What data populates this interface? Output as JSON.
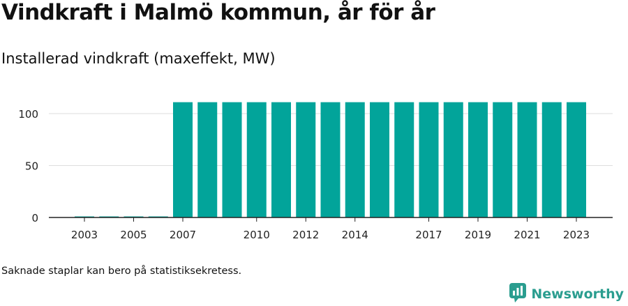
{
  "title": "Vindkraft i Malmö kommun, år för år",
  "subtitle": "Installerad vindkraft (maxeffekt, MW)",
  "footnote": "Saknade staplar kan bero på statistiksekretess.",
  "brand": {
    "name": "Newsworthy",
    "icon": "chart-speech-bubble-icon"
  },
  "colors": {
    "bar": "#02a49a",
    "axis": "#222222",
    "grid": "#dddddd",
    "brand": "#2a9d8f"
  },
  "chart_data": {
    "type": "bar",
    "categories": [
      "2003",
      "2004",
      "2005",
      "2006",
      "2007",
      "2008",
      "2009",
      "2010",
      "2011",
      "2012",
      "2013",
      "2014",
      "2015",
      "2016",
      "2017",
      "2018",
      "2019",
      "2020",
      "2021",
      "2022",
      "2023"
    ],
    "values": [
      0.6,
      0.6,
      0.6,
      0.6,
      111,
      111,
      111,
      111,
      111,
      111,
      111,
      111,
      111,
      111,
      111,
      111,
      111,
      111,
      111,
      111,
      111
    ],
    "x_tick_labels": [
      "2003",
      "2005",
      "2007",
      "2010",
      "2012",
      "2014",
      "2017",
      "2019",
      "2021",
      "2023"
    ],
    "y_ticks": [
      0,
      50,
      100
    ],
    "ylim": [
      0,
      120
    ],
    "grid": true,
    "legend": "none"
  }
}
